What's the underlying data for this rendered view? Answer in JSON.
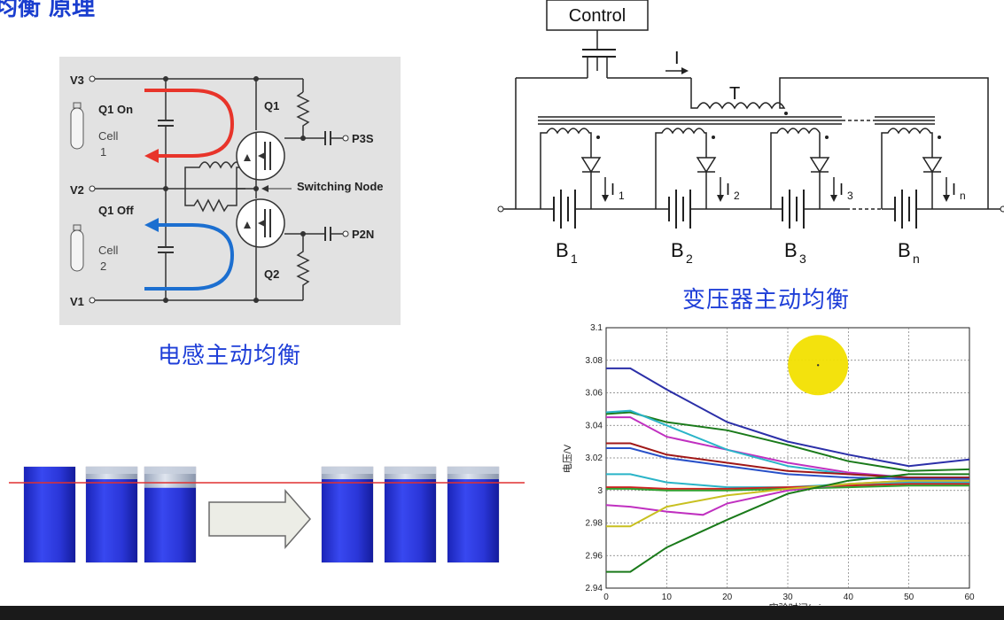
{
  "top_title": "均衡 原理",
  "inductor": {
    "caption": "电感主动均衡",
    "labels": {
      "v3": "V3",
      "v2": "V2",
      "v1": "V1",
      "q1_on": "Q1 On",
      "q1_off": "Q1 Off",
      "cell1": "Cell",
      "cell1_num": "1",
      "cell2": "Cell",
      "cell2_num": "2",
      "q1": "Q1",
      "q2": "Q2",
      "p3s": "P3S",
      "p2n": "P2N",
      "switching_node": "Switching Node"
    },
    "colors": {
      "top_current": "#e8342a",
      "bottom_current": "#1c6fd0"
    }
  },
  "transformer": {
    "caption": "变压器主动均衡",
    "control": "Control",
    "current_label": "I",
    "transformer_label": "T",
    "cells": [
      {
        "battery": "B",
        "battery_sub": "1",
        "current": "I",
        "current_sub": "1"
      },
      {
        "battery": "B",
        "battery_sub": "2",
        "current": "I",
        "current_sub": "2"
      },
      {
        "battery": "B",
        "battery_sub": "3",
        "current": "I",
        "current_sub": "3"
      },
      {
        "battery": "B",
        "battery_sub": "n",
        "current": "I",
        "current_sub": "n"
      }
    ]
  },
  "balance_illustration": {
    "before_levels": [
      1.0,
      0.87,
      0.78
    ],
    "after_levels": [
      0.87,
      0.87,
      0.87
    ],
    "fill_color": "#1f2fd8",
    "line_color": "#e03030"
  },
  "chart_data": {
    "type": "line",
    "xlabel": "实验时间/min",
    "ylabel": "电压/V",
    "xlim": [
      0,
      60
    ],
    "ylim": [
      2.94,
      3.1
    ],
    "x_ticks": [
      "0",
      "10",
      "20",
      "30",
      "40",
      "50",
      "60"
    ],
    "y_ticks": [
      "2.94",
      "2.96",
      "2.98",
      "3",
      "3.02",
      "3.04",
      "3.06",
      "3.08",
      "3.1"
    ],
    "grid": true,
    "series": [
      {
        "color": "#2b2fa8",
        "x": [
          0,
          4,
          10,
          20,
          30,
          40,
          50,
          60
        ],
        "y": [
          3.075,
          3.075,
          3.062,
          3.042,
          3.03,
          3.022,
          3.015,
          3.019
        ]
      },
      {
        "color": "#1a7a1a",
        "x": [
          0,
          4,
          10,
          20,
          30,
          40,
          50,
          60
        ],
        "y": [
          3.047,
          3.048,
          3.042,
          3.037,
          3.028,
          3.018,
          3.012,
          3.013
        ]
      },
      {
        "color": "#c030c0",
        "x": [
          0,
          4,
          10,
          20,
          30,
          40,
          50,
          60
        ],
        "y": [
          3.045,
          3.045,
          3.033,
          3.025,
          3.017,
          3.011,
          3.008,
          3.008
        ]
      },
      {
        "color": "#2ab4c8",
        "x": [
          0,
          4,
          10,
          20,
          30,
          40,
          50,
          60
        ],
        "y": [
          3.048,
          3.049,
          3.04,
          3.025,
          3.015,
          3.01,
          3.008,
          3.008
        ]
      },
      {
        "color": "#a01818",
        "x": [
          0,
          4,
          10,
          20,
          30,
          40,
          50,
          60
        ],
        "y": [
          3.029,
          3.029,
          3.022,
          3.017,
          3.012,
          3.01,
          3.008,
          3.008
        ]
      },
      {
        "color": "#2850c8",
        "x": [
          0,
          4,
          10,
          20,
          30,
          40,
          50,
          60
        ],
        "y": [
          3.026,
          3.026,
          3.02,
          3.015,
          3.01,
          3.008,
          3.007,
          3.007
        ]
      },
      {
        "color": "#2ab4c8",
        "x": [
          0,
          4,
          10,
          20,
          30,
          40,
          50,
          60
        ],
        "y": [
          3.01,
          3.01,
          3.005,
          3.002,
          3.002,
          3.004,
          3.005,
          3.005
        ]
      },
      {
        "color": "#d02020",
        "x": [
          0,
          4,
          10,
          20,
          30,
          40,
          50,
          60
        ],
        "y": [
          3.002,
          3.002,
          3.001,
          3.001,
          3.002,
          3.003,
          3.004,
          3.004
        ]
      },
      {
        "color": "#30a030",
        "x": [
          0,
          4,
          10,
          20,
          30,
          40,
          50,
          60
        ],
        "y": [
          3.001,
          3.001,
          3.0,
          3.0,
          3.001,
          3.002,
          3.003,
          3.003
        ]
      },
      {
        "color": "#c030c0",
        "x": [
          0,
          4,
          10,
          16,
          20,
          30,
          40,
          50,
          60
        ],
        "y": [
          2.991,
          2.99,
          2.987,
          2.985,
          2.992,
          3.0,
          3.004,
          3.006,
          3.006
        ]
      },
      {
        "color": "#c8c020",
        "x": [
          0,
          4,
          10,
          20,
          30,
          40,
          50,
          60
        ],
        "y": [
          2.978,
          2.978,
          2.99,
          2.997,
          3.001,
          3.004,
          3.006,
          3.006
        ]
      },
      {
        "color": "#1a7a1a",
        "x": [
          0,
          2,
          4,
          10,
          20,
          30,
          40,
          50,
          60
        ],
        "y": [
          2.95,
          2.95,
          2.95,
          2.965,
          2.982,
          2.998,
          3.006,
          3.01,
          3.01
        ]
      }
    ],
    "annotation": {
      "type": "highlight-circle",
      "x": 35,
      "y": 3.077,
      "color": "#f2e000"
    }
  }
}
